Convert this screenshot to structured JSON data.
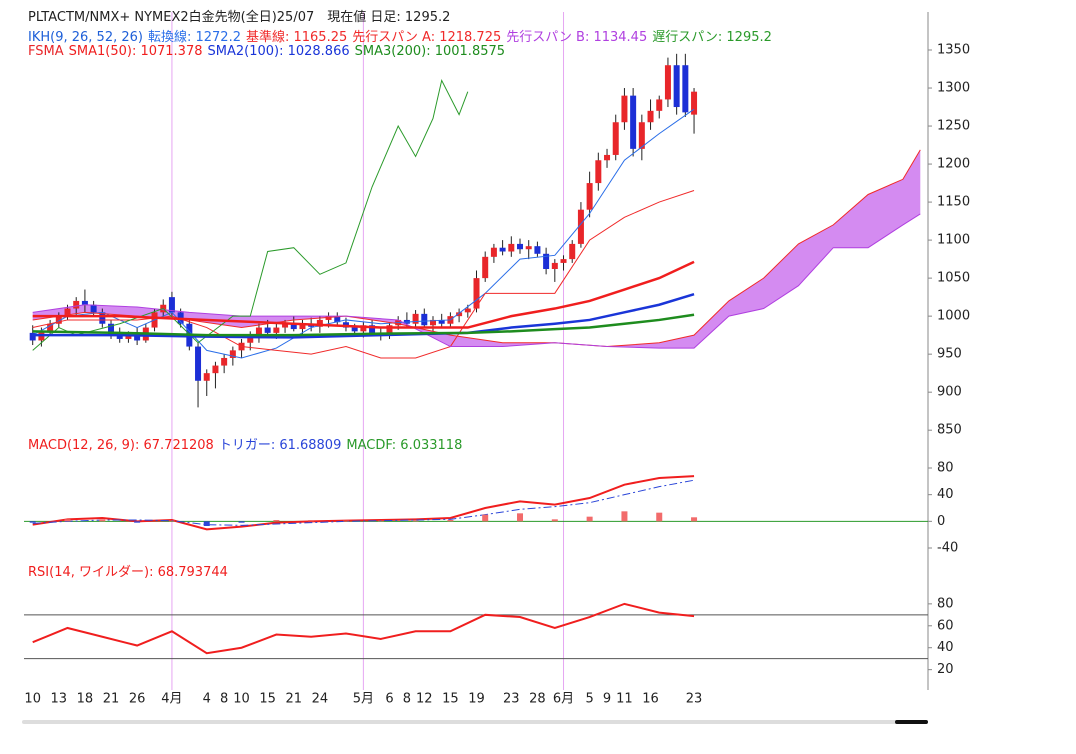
{
  "chart_data": [
    {
      "type": "candlestick",
      "title": "PLTACTM/NMX+ NYMEX2白金先物(全日)25/07　現在値 日足: 1295.2",
      "categories": [
        "10",
        null,
        null,
        "13",
        null,
        null,
        "18",
        null,
        null,
        "21",
        null,
        null,
        "26",
        null,
        null,
        null,
        "4月",
        null,
        null,
        null,
        "4",
        null,
        "8",
        null,
        "10",
        null,
        null,
        "15",
        null,
        null,
        "21",
        null,
        null,
        "24",
        null,
        null,
        null,
        null,
        "5月",
        null,
        null,
        "6",
        null,
        "8",
        null,
        "12",
        null,
        null,
        "15",
        null,
        null,
        "19",
        null,
        null,
        null,
        "23",
        null,
        null,
        "28",
        null,
        null,
        "6月",
        null,
        null,
        "5",
        null,
        "9",
        null,
        "11",
        null,
        null,
        "16",
        null,
        null,
        null,
        null,
        "23"
      ],
      "open": [
        978,
        968,
        980,
        990,
        1000,
        1010,
        1020,
        1015,
        1005,
        990,
        975,
        970,
        975,
        968,
        985,
        1005,
        1025,
        1005,
        990,
        960,
        915,
        925,
        935,
        945,
        955,
        965,
        975,
        985,
        978,
        985,
        990,
        983,
        990,
        986,
        995,
        1000,
        992,
        985,
        980,
        988,
        978,
        975,
        988,
        995,
        990,
        1003,
        988,
        995,
        990,
        1000,
        1005,
        1010,
        1050,
        1078,
        1090,
        1085,
        1095,
        1088,
        1092,
        1082,
        1062,
        1070,
        1075,
        1095,
        1140,
        1175,
        1205,
        1212,
        1255,
        1290,
        1220,
        1255,
        1270,
        1285,
        1330,
        1330,
        1265
      ],
      "high": [
        988,
        985,
        995,
        1005,
        1015,
        1025,
        1035,
        1020,
        1010,
        995,
        985,
        980,
        985,
        990,
        1010,
        1022,
        1032,
        1010,
        995,
        965,
        930,
        940,
        950,
        960,
        970,
        980,
        990,
        995,
        990,
        995,
        1000,
        995,
        998,
        1000,
        1005,
        1005,
        998,
        990,
        992,
        995,
        985,
        992,
        1000,
        1005,
        1008,
        1010,
        1000,
        1003,
        1005,
        1010,
        1015,
        1060,
        1085,
        1095,
        1100,
        1105,
        1102,
        1100,
        1098,
        1090,
        1075,
        1080,
        1100,
        1150,
        1190,
        1215,
        1220,
        1265,
        1300,
        1300,
        1265,
        1285,
        1290,
        1340,
        1345,
        1345,
        1300
      ],
      "low": [
        962,
        960,
        975,
        985,
        995,
        1000,
        1005,
        1000,
        985,
        970,
        965,
        965,
        962,
        965,
        980,
        998,
        1000,
        985,
        955,
        880,
        895,
        905,
        925,
        935,
        945,
        955,
        965,
        975,
        970,
        978,
        980,
        975,
        980,
        978,
        985,
        988,
        980,
        975,
        972,
        975,
        968,
        970,
        982,
        985,
        985,
        985,
        980,
        985,
        985,
        992,
        998,
        1005,
        1045,
        1070,
        1080,
        1078,
        1082,
        1075,
        1078,
        1055,
        1045,
        1060,
        1070,
        1090,
        1130,
        1165,
        1195,
        1205,
        1245,
        1210,
        1205,
        1245,
        1260,
        1275,
        1265,
        1262,
        1240
      ],
      "close": [
        968,
        980,
        990,
        1000,
        1010,
        1020,
        1015,
        1005,
        990,
        975,
        970,
        975,
        968,
        985,
        1005,
        1015,
        1005,
        990,
        960,
        915,
        925,
        935,
        945,
        955,
        965,
        975,
        985,
        978,
        985,
        990,
        983,
        990,
        986,
        995,
        1000,
        992,
        985,
        980,
        988,
        978,
        975,
        988,
        995,
        990,
        1003,
        988,
        995,
        990,
        1000,
        1005,
        1010,
        1050,
        1078,
        1090,
        1085,
        1095,
        1088,
        1092,
        1082,
        1062,
        1070,
        1075,
        1095,
        1140,
        1175,
        1205,
        1212,
        1255,
        1290,
        1220,
        1255,
        1270,
        1285,
        1330,
        1275,
        1268,
        1295.2
      ],
      "up_color": "#e8262a",
      "down_color": "#1c2fd6",
      "xlim": [
        -1,
        103
      ],
      "ylim": [
        845,
        1375
      ],
      "yticks": [
        850,
        900,
        950,
        1000,
        1050,
        1100,
        1150,
        1200,
        1250,
        1300,
        1350
      ],
      "groups": [
        {
          "label": "IKH(9, 26, 52, 26)",
          "color": "#1e5fd8",
          "cloud": {
            "series": [
              2,
              3
            ],
            "color": "#cc77ee"
          },
          "series": [
            {
              "name": "転換線: 1272.2",
              "color": "#2a6ee8",
              "line_width": 1,
              "x": [
                0,
                4,
                8,
                12,
                16,
                20,
                24,
                28,
                32,
                36,
                40,
                44,
                48,
                52,
                56,
                60,
                64,
                68,
                72,
                76
              ],
              "values": [
                975,
                1000,
                1005,
                985,
                1005,
                955,
                945,
                958,
                985,
                995,
                990,
                993,
                995,
                1030,
                1075,
                1080,
                1135,
                1205,
                1240,
                1272.2
              ]
            },
            {
              "name": "基準線: 1165.25",
              "color": "#f02a2a",
              "line_width": 1,
              "x": [
                0,
                4,
                8,
                12,
                16,
                20,
                24,
                28,
                32,
                36,
                40,
                44,
                48,
                52,
                56,
                60,
                64,
                68,
                72,
                76
              ],
              "values": [
                985,
                995,
                995,
                995,
                1000,
                985,
                960,
                955,
                950,
                960,
                945,
                945,
                960,
                1030,
                1030,
                1030,
                1100,
                1130,
                1150,
                1165.25
              ]
            },
            {
              "name": "先行スパン A: 1218.725",
              "color": "#f02a2a",
              "line_width": 1,
              "x": [
                0,
                6,
                12,
                18,
                24,
                30,
                36,
                42,
                48,
                54,
                60,
                66,
                72,
                76,
                80,
                84,
                88,
                92,
                96,
                100,
                102
              ],
              "values": [
                995,
                1005,
                1000,
                995,
                985,
                995,
                1000,
                990,
                975,
                965,
                965,
                960,
                965,
                975,
                1020,
                1050,
                1095,
                1120,
                1160,
                1180,
                1218.725
              ]
            },
            {
              "name": "先行スパン B: 1134.45",
              "color": "#b040e0",
              "line_width": 1,
              "x": [
                0,
                6,
                12,
                18,
                24,
                30,
                36,
                42,
                48,
                54,
                60,
                66,
                72,
                76,
                80,
                84,
                88,
                92,
                96,
                100,
                102
              ],
              "values": [
                1005,
                1015,
                1012,
                1005,
                1000,
                1000,
                1000,
                995,
                960,
                960,
                965,
                960,
                958,
                958,
                1000,
                1010,
                1040,
                1090,
                1090,
                1120,
                1134.45
              ]
            },
            {
              "name": "遅行スパン: 1295.2",
              "color": "#2a9a2a",
              "line_width": 1,
              "x": [
                0,
                3,
                5,
                10,
                15,
                19,
                23,
                25,
                27,
                30,
                33,
                36,
                39,
                42,
                44,
                46,
                47,
                49,
                50
              ],
              "values": [
                955,
                985,
                975,
                990,
                1010,
                965,
                1000,
                1000,
                1085,
                1090,
                1055,
                1070,
                1170,
                1250,
                1210,
                1260,
                1310,
                1265,
                1295.2
              ]
            }
          ]
        },
        {
          "label": "FSMA",
          "color": "#e8262a",
          "series": [
            {
              "name": "SMA1(50): 1071.378",
              "color": "#f01e1e",
              "line_width": 2.5,
              "x": [
                0,
                10,
                20,
                30,
                40,
                50,
                55,
                60,
                64,
                68,
                72,
                76
              ],
              "values": [
                1000,
                1000,
                995,
                990,
                985,
                985,
                1000,
                1010,
                1020,
                1035,
                1050,
                1071.378
              ]
            },
            {
              "name": "SMA2(100): 1028.866",
              "color": "#1a35d8",
              "line_width": 2.5,
              "x": [
                0,
                10,
                20,
                30,
                40,
                50,
                55,
                60,
                64,
                68,
                72,
                76
              ],
              "values": [
                975,
                975,
                973,
                972,
                975,
                978,
                985,
                990,
                995,
                1005,
                1015,
                1028.866
              ]
            },
            {
              "name": "SMA3(200): 1001.8575",
              "color": "#1e8c1e",
              "line_width": 2.5,
              "x": [
                0,
                10,
                20,
                30,
                40,
                50,
                55,
                60,
                64,
                68,
                72,
                76
              ],
              "values": [
                980,
                978,
                975,
                975,
                977,
                978,
                980,
                983,
                985,
                990,
                995,
                1001.8575
              ]
            }
          ]
        }
      ]
    },
    {
      "type": "line",
      "ylim": [
        -55,
        122
      ],
      "yticks": [
        -40,
        0,
        40,
        80
      ],
      "hlines": [
        0
      ],
      "hline_color": "#2a9a2a",
      "series": [
        {
          "name": "MACD(12, 26, 9): 67.721208",
          "color": "#f01e1e",
          "line_width": 2,
          "x": [
            0,
            4,
            8,
            12,
            16,
            20,
            24,
            28,
            32,
            36,
            40,
            44,
            48,
            52,
            56,
            60,
            64,
            68,
            72,
            76
          ],
          "values": [
            -5,
            3,
            5,
            0,
            2,
            -12,
            -8,
            -2,
            0,
            1,
            2,
            3,
            5,
            20,
            30,
            25,
            35,
            55,
            65,
            67.721208
          ]
        },
        {
          "name": "トリガー: 61.68809",
          "color": "#2a45d8",
          "line_width": 1,
          "dash": true,
          "x": [
            0,
            4,
            8,
            12,
            16,
            20,
            24,
            28,
            32,
            36,
            40,
            44,
            48,
            52,
            56,
            60,
            64,
            68,
            72,
            76
          ],
          "values": [
            -3,
            0,
            2,
            2,
            1,
            -5,
            -6,
            -4,
            -2,
            0,
            1,
            2,
            3,
            10,
            18,
            22,
            28,
            40,
            52,
            61.68809
          ]
        },
        {
          "name": "MACDF: 6.033118",
          "color": "#2a9a2a",
          "style": "bar",
          "bar_colors": [
            "#f26b6b",
            "#2b45d9"
          ],
          "x": [
            0,
            4,
            8,
            12,
            16,
            20,
            24,
            28,
            32,
            36,
            40,
            44,
            48,
            52,
            56,
            60,
            64,
            68,
            72,
            76
          ],
          "values": [
            -2,
            3,
            3,
            -2,
            1,
            -7,
            -2,
            2,
            2,
            1,
            1,
            1,
            2,
            10,
            12,
            3,
            7,
            15,
            13,
            6.033118
          ]
        }
      ]
    },
    {
      "type": "line",
      "ylim": [
        6,
        120
      ],
      "yticks": [
        20,
        40,
        60,
        80
      ],
      "hlines": [
        70,
        30
      ],
      "hline_color": "#555555",
      "series": [
        {
          "name": "RSI(14, ワイルダー): 68.793744",
          "color": "#f01e1e",
          "line_width": 2,
          "x": [
            0,
            4,
            8,
            12,
            16,
            20,
            24,
            28,
            32,
            36,
            40,
            44,
            48,
            52,
            56,
            60,
            64,
            68,
            72,
            76
          ],
          "values": [
            45,
            58,
            50,
            42,
            55,
            35,
            40,
            52,
            50,
            53,
            48,
            55,
            55,
            70,
            68,
            58,
            68,
            80,
            72,
            68.793744
          ]
        }
      ]
    }
  ]
}
